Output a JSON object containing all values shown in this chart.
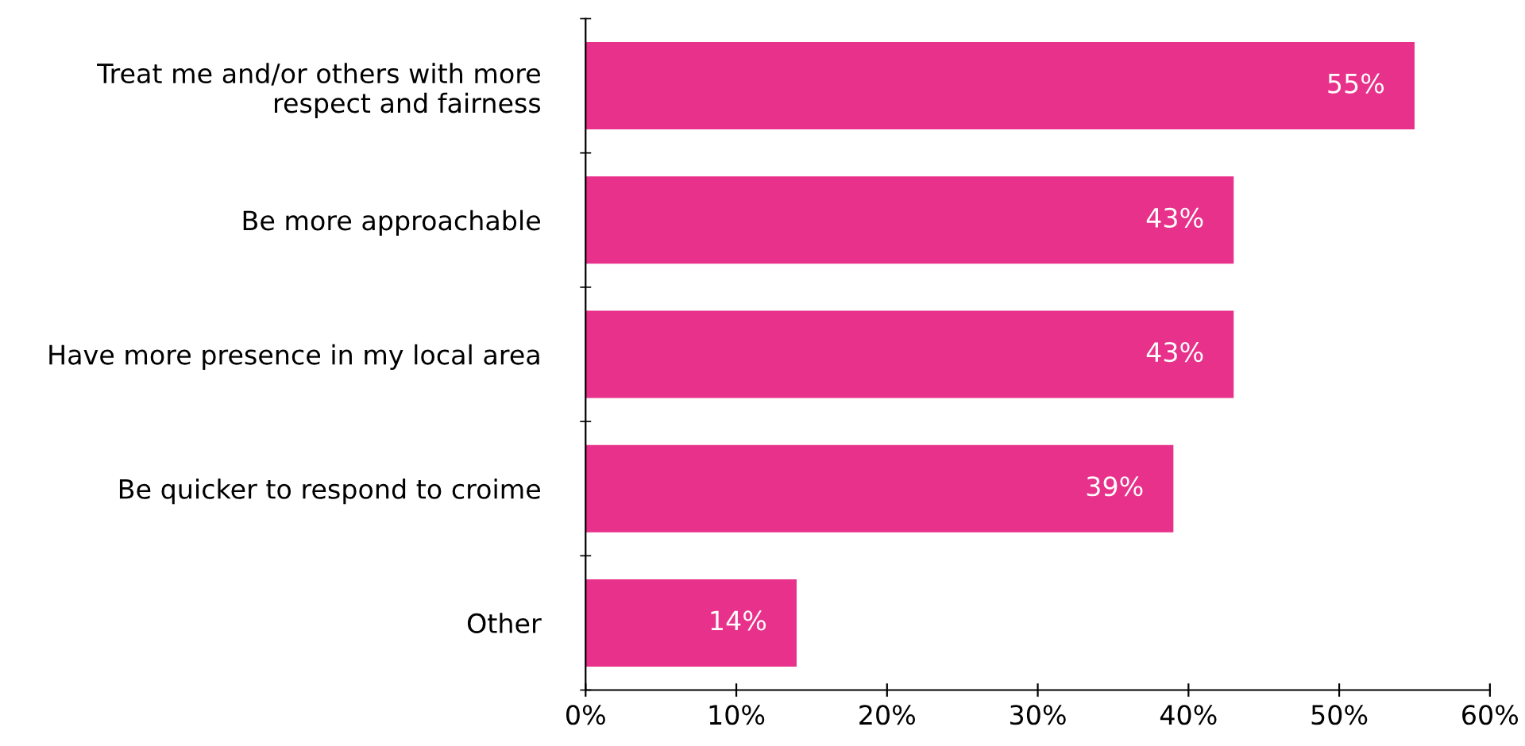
{
  "chart_data": {
    "type": "bar",
    "orientation": "horizontal",
    "categories": [
      "Treat me and/or others with more\nrespect and fairness",
      "Be more approachable",
      "Have more presence in my local area",
      "Be quicker to respond to croime",
      "Other"
    ],
    "values": [
      55,
      43,
      43,
      39,
      14
    ],
    "value_labels": [
      "55%",
      "43%",
      "43%",
      "39%",
      "14%"
    ],
    "color": "#e8318a",
    "xlim": [
      0,
      60
    ],
    "xticks": [
      {
        "value": 0,
        "label": "0%"
      },
      {
        "value": 10,
        "label": "10%"
      },
      {
        "value": 20,
        "label": "20%"
      },
      {
        "value": 30,
        "label": "30%"
      },
      {
        "value": 40,
        "label": "40%"
      },
      {
        "value": 50,
        "label": "50%"
      },
      {
        "value": 60,
        "label": "60%"
      }
    ],
    "grid": false,
    "legend": false
  }
}
